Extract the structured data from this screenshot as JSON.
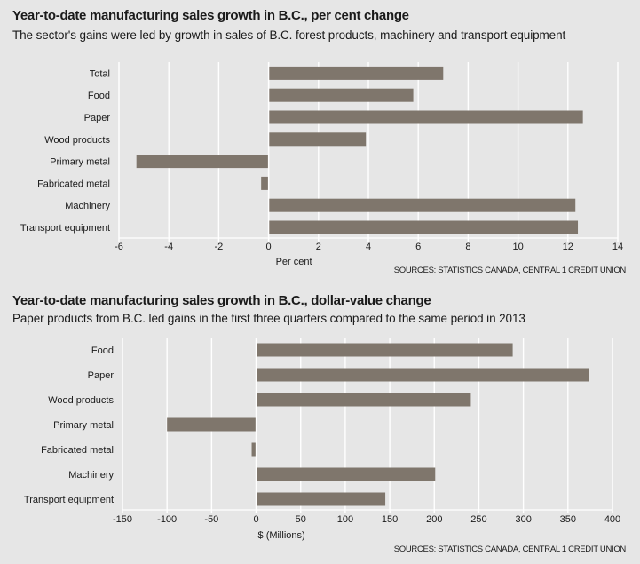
{
  "chart_data": [
    {
      "type": "bar",
      "orientation": "horizontal",
      "title": "Year-to-date manufacturing sales growth in B.C., per cent change",
      "subtitle": "The sector's gains were led by growth in sales of B.C. forest products, machinery and transport equipment",
      "categories": [
        "Total",
        "Food",
        "Paper",
        "Wood products",
        "Primary metal",
        "Fabricated metal",
        "Machinery",
        "Transport equipment"
      ],
      "values": [
        7.0,
        5.8,
        12.6,
        3.9,
        -5.3,
        -0.3,
        12.3,
        12.4
      ],
      "xlabel": "Per cent",
      "ylabel": "",
      "xlim": [
        -6,
        14
      ],
      "ticks": [
        -6,
        -4,
        -2,
        0,
        2,
        4,
        6,
        8,
        10,
        12,
        14
      ],
      "grid": "vertical",
      "bar_color": "#7f766c",
      "source": "SOURCES: STATISTICS CANADA, CENTRAL 1 CREDIT UNION"
    },
    {
      "type": "bar",
      "orientation": "horizontal",
      "title": "Year-to-date manufacturing sales growth in B.C., dollar-value change",
      "subtitle": "Paper products from B.C. led gains in the first three quarters compared to the same period in 2013",
      "categories": [
        "Food",
        "Paper",
        "Wood products",
        "Primary metal",
        "Fabricated metal",
        "Machinery",
        "Transport equipment"
      ],
      "values": [
        288,
        374,
        241,
        -100,
        -5,
        201,
        145
      ],
      "xlabel": "$ (Millions)",
      "ylabel": "",
      "xlim": [
        -150,
        400
      ],
      "ticks": [
        -150,
        -100,
        -50,
        0,
        50,
        100,
        150,
        200,
        250,
        300,
        350,
        400
      ],
      "grid": "vertical",
      "bar_color": "#7f766c",
      "source": "SOURCES: STATISTICS CANADA, CENTRAL 1 CREDIT UNION"
    }
  ]
}
